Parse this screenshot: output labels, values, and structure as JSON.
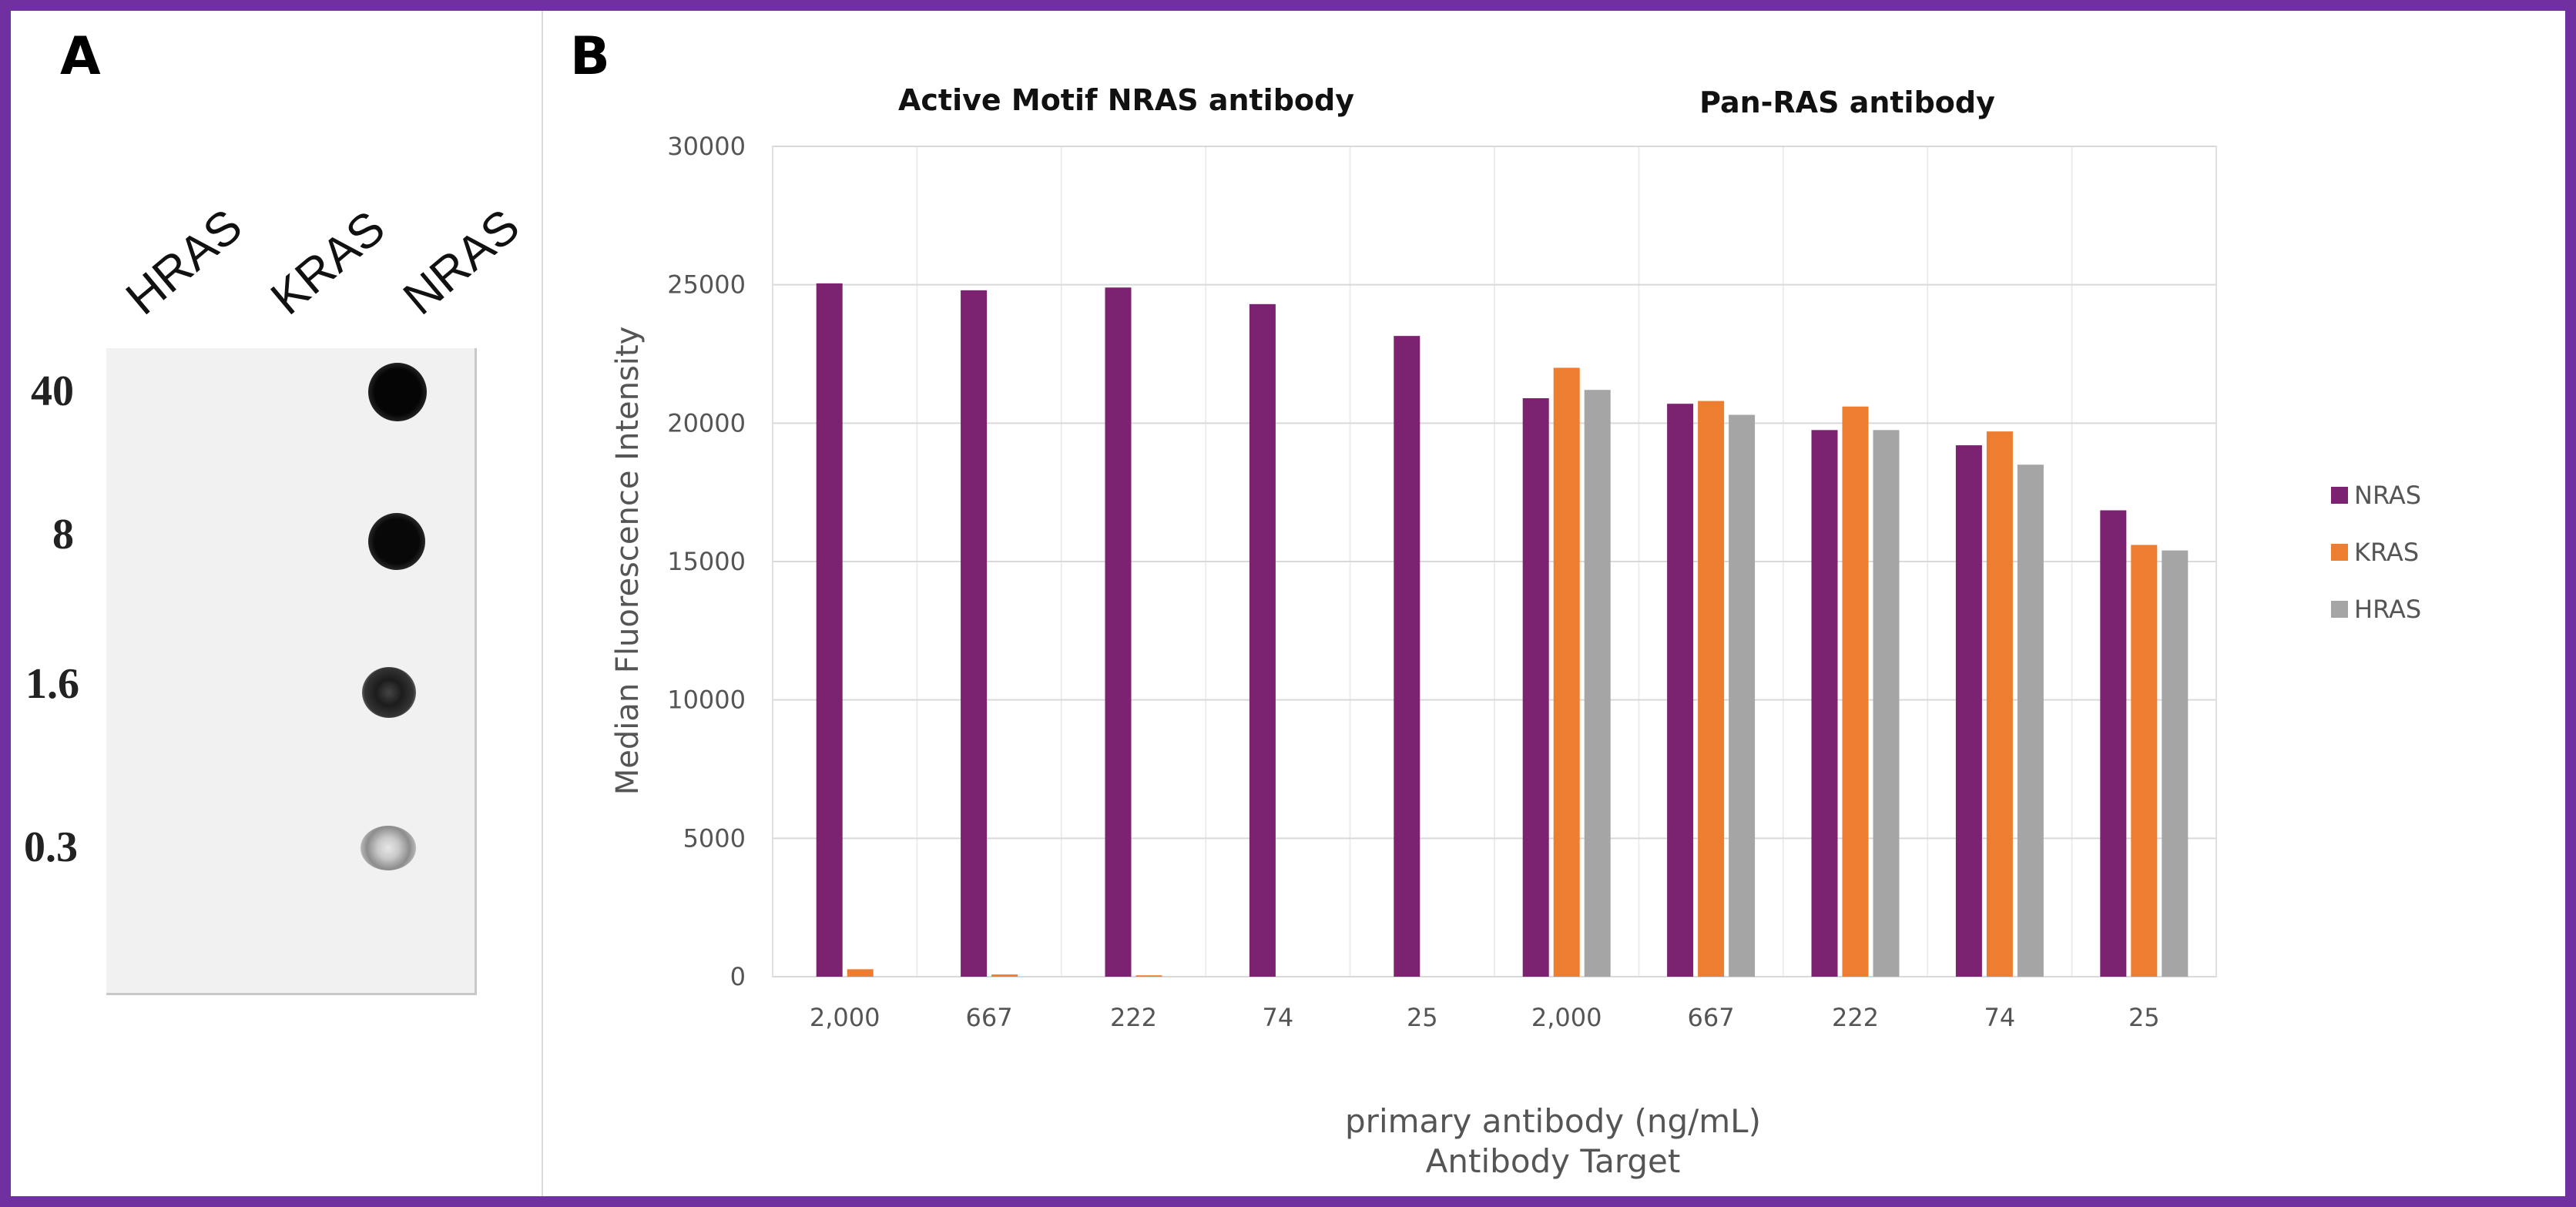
{
  "panel_a": {
    "letter": "A",
    "columns": [
      "HRAS",
      "KRAS",
      "NRAS"
    ],
    "rows": [
      "40",
      "8",
      "1.6",
      "0.3"
    ]
  },
  "panel_b": {
    "letter": "B",
    "group_titles": [
      "Active Motif NRAS antibody",
      "Pan-RAS antibody"
    ]
  },
  "chart_data": {
    "type": "bar",
    "categories": [
      "2,000",
      "667",
      "222",
      "74",
      "25",
      "2,000",
      "667",
      "222",
      "74",
      "25"
    ],
    "series": [
      {
        "name": "NRAS",
        "color": "#7b2270",
        "values": [
          25050,
          24800,
          24900,
          24300,
          23150,
          20900,
          20700,
          19750,
          19200,
          16850
        ]
      },
      {
        "name": "KRAS",
        "color": "#ed7d31",
        "values": [
          270,
          80,
          50,
          0,
          0,
          22000,
          20800,
          20600,
          19700,
          15600
        ]
      },
      {
        "name": "HRAS",
        "color": "#a5a5a5",
        "values": [
          null,
          null,
          null,
          null,
          null,
          21200,
          20300,
          19750,
          18500,
          15400
        ]
      }
    ],
    "ylim": [
      0,
      30000
    ],
    "yticks": [
      "0",
      "5000",
      "10000",
      "15000",
      "20000",
      "25000",
      "30000"
    ],
    "ylabel": "Median Fluorescence Intensity",
    "xlabel": "primary antibody (ng/mL)",
    "xlabel2": "Antibody Target",
    "legend": [
      "NRAS",
      "KRAS",
      "HRAS"
    ],
    "legend_position": "right",
    "grid": true
  }
}
